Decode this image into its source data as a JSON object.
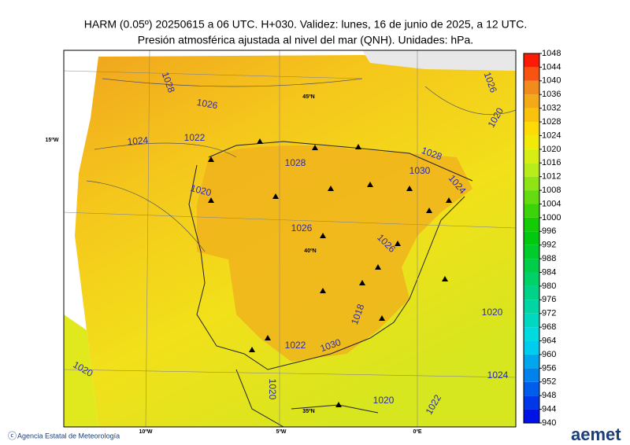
{
  "header": {
    "line1": "HARM (0.05º) 20250615 a 06 UTC. H+030. Validez: lunes, 16 de junio de 2025, a 12 UTC.",
    "line2": "Presión atmosférica ajustada al nivel del mar (QNH). Unidades: hPa."
  },
  "map": {
    "graticule": [
      "45ºN",
      "40ºN",
      "35ºN",
      "15ºW",
      "10ºW",
      "5ºW",
      "0ºE"
    ],
    "contour_labels": [
      "1028",
      "1026",
      "1024",
      "1022",
      "1020",
      "1028",
      "1026",
      "1026",
      "1028",
      "1030",
      "1024",
      "1026",
      "1020",
      "1020",
      "1024",
      "1022",
      "1020",
      "1020",
      "1018",
      "1030",
      "1022",
      "1020"
    ]
  },
  "colorbar": {
    "ticks": [
      940,
      944,
      948,
      952,
      956,
      960,
      964,
      968,
      972,
      976,
      980,
      984,
      988,
      992,
      996,
      1000,
      1004,
      1008,
      1012,
      1016,
      1020,
      1024,
      1028,
      1032,
      1036,
      1040,
      1044,
      1048
    ]
  },
  "footer": {
    "agency": "Agencia Estatal de Meteorología",
    "logo": "aemet"
  }
}
